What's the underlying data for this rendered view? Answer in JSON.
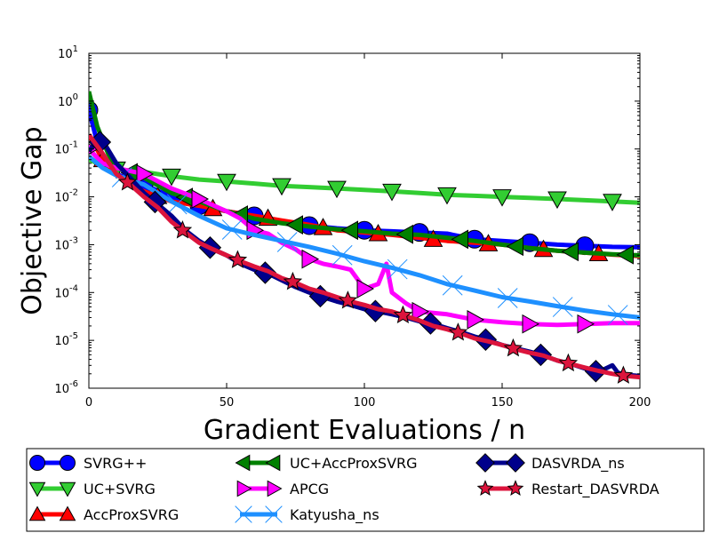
{
  "chart_data": {
    "type": "line",
    "title": "",
    "xlabel": "Gradient Evaluations / n",
    "ylabel": "Objective Gap",
    "xlim": [
      0,
      200
    ],
    "ylim_log10": [
      -6,
      1
    ],
    "yscale": "log",
    "x_ticks": [
      {
        "value": 0,
        "label": "0"
      },
      {
        "value": 50,
        "label": "50"
      },
      {
        "value": 100,
        "label": "100"
      },
      {
        "value": 150,
        "label": "150"
      },
      {
        "value": 200,
        "label": "200"
      }
    ],
    "y_ticks": [
      {
        "exp": 1,
        "base": "10",
        "sup": "1"
      },
      {
        "exp": 0,
        "base": "10",
        "sup": "0"
      },
      {
        "exp": -1,
        "base": "10",
        "sup": "-1"
      },
      {
        "exp": -2,
        "base": "10",
        "sup": "-2"
      },
      {
        "exp": -3,
        "base": "10",
        "sup": "-3"
      },
      {
        "exp": -4,
        "base": "10",
        "sup": "-4"
      },
      {
        "exp": -5,
        "base": "10",
        "sup": "-5"
      },
      {
        "exp": -6,
        "base": "10",
        "sup": "-6"
      }
    ],
    "legend_position": "below",
    "series": [
      {
        "name": "SVRG++",
        "color": "#0000ff",
        "marker": "circle",
        "marker_color": "#0000ff",
        "points": [
          [
            0,
            0.65
          ],
          [
            5,
            0.05
          ],
          [
            10,
            0.03
          ],
          [
            20,
            0.018
          ],
          [
            30,
            0.01
          ],
          [
            40,
            0.0065
          ],
          [
            50,
            0.005
          ],
          [
            60,
            0.004
          ],
          [
            70,
            0.003
          ],
          [
            80,
            0.0025
          ],
          [
            90,
            0.0022
          ],
          [
            100,
            0.002
          ],
          [
            110,
            0.0019
          ],
          [
            120,
            0.0018
          ],
          [
            130,
            0.0017
          ],
          [
            140,
            0.0013
          ],
          [
            150,
            0.0012
          ],
          [
            160,
            0.0011
          ],
          [
            170,
            0.001
          ],
          [
            180,
            0.00095
          ],
          [
            190,
            0.0009
          ],
          [
            200,
            0.00088
          ]
        ],
        "markers_x": [
          0,
          20,
          40,
          60,
          80,
          100,
          120,
          140,
          160,
          180
        ]
      },
      {
        "name": "UC+SVRG",
        "color": "#32cd32",
        "marker": "triangle-down",
        "marker_color": "#32cd32",
        "points": [
          [
            0,
            0.06
          ],
          [
            5,
            0.045
          ],
          [
            10,
            0.038
          ],
          [
            20,
            0.033
          ],
          [
            30,
            0.027
          ],
          [
            40,
            0.023
          ],
          [
            50,
            0.021
          ],
          [
            60,
            0.019
          ],
          [
            70,
            0.017
          ],
          [
            80,
            0.016
          ],
          [
            90,
            0.015
          ],
          [
            100,
            0.014
          ],
          [
            110,
            0.013
          ],
          [
            120,
            0.012
          ],
          [
            130,
            0.011
          ],
          [
            140,
            0.0105
          ],
          [
            150,
            0.01
          ],
          [
            160,
            0.0095
          ],
          [
            170,
            0.009
          ],
          [
            180,
            0.0085
          ],
          [
            190,
            0.008
          ],
          [
            200,
            0.0075
          ]
        ],
        "markers_x": [
          10,
          30,
          50,
          70,
          90,
          110,
          130,
          150,
          170,
          190
        ]
      },
      {
        "name": "AccProxSVRG",
        "color": "#ff0000",
        "marker": "triangle-up",
        "marker_color": "#ff0000",
        "points": [
          [
            0,
            0.2
          ],
          [
            5,
            0.06
          ],
          [
            10,
            0.03
          ],
          [
            15,
            0.018
          ],
          [
            20,
            0.013
          ],
          [
            30,
            0.008
          ],
          [
            40,
            0.0065
          ],
          [
            50,
            0.005
          ],
          [
            60,
            0.004
          ],
          [
            70,
            0.0032
          ],
          [
            80,
            0.0026
          ],
          [
            90,
            0.002
          ],
          [
            100,
            0.0018
          ],
          [
            110,
            0.0016
          ],
          [
            120,
            0.0014
          ],
          [
            130,
            0.0012
          ],
          [
            140,
            0.0011
          ],
          [
            150,
            0.001
          ],
          [
            160,
            0.00085
          ],
          [
            170,
            0.00075
          ],
          [
            180,
            0.00068
          ],
          [
            190,
            0.00062
          ],
          [
            200,
            0.00058
          ]
        ],
        "markers_x": [
          5,
          25,
          45,
          65,
          85,
          105,
          125,
          145,
          165,
          185
        ]
      },
      {
        "name": "UC+AccProxSVRG",
        "color": "#008000",
        "marker": "triangle-left",
        "marker_color": "#008000",
        "points": [
          [
            0,
            1.6
          ],
          [
            3,
            0.3
          ],
          [
            7,
            0.08
          ],
          [
            10,
            0.04
          ],
          [
            15,
            0.032
          ],
          [
            20,
            0.025
          ],
          [
            30,
            0.012
          ],
          [
            40,
            0.008
          ],
          [
            50,
            0.005
          ],
          [
            60,
            0.0035
          ],
          [
            70,
            0.0028
          ],
          [
            80,
            0.0024
          ],
          [
            90,
            0.0021
          ],
          [
            100,
            0.0019
          ],
          [
            110,
            0.0017
          ],
          [
            120,
            0.0016
          ],
          [
            130,
            0.0014
          ],
          [
            140,
            0.0012
          ],
          [
            150,
            0.001
          ],
          [
            160,
            0.00085
          ],
          [
            170,
            0.00075
          ],
          [
            180,
            0.00068
          ],
          [
            190,
            0.00063
          ],
          [
            200,
            0.0006
          ]
        ],
        "markers_x": [
          15,
          35,
          55,
          75,
          95,
          115,
          135,
          155,
          175,
          195
        ]
      },
      {
        "name": "APCG",
        "color": "#ff00ff",
        "marker": "triangle-right",
        "marker_color": "#ff00ff",
        "points": [
          [
            0,
            0.1
          ],
          [
            5,
            0.05
          ],
          [
            10,
            0.04
          ],
          [
            20,
            0.03
          ],
          [
            30,
            0.015
          ],
          [
            40,
            0.009
          ],
          [
            50,
            0.005
          ],
          [
            55,
            0.0035
          ],
          [
            60,
            0.002
          ],
          [
            65,
            0.0017
          ],
          [
            70,
            0.0011
          ],
          [
            75,
            0.0008
          ],
          [
            80,
            0.0005
          ],
          [
            85,
            0.0004
          ],
          [
            90,
            0.00035
          ],
          [
            95,
            0.0003
          ],
          [
            100,
            0.00012
          ],
          [
            105,
            0.00015
          ],
          [
            108,
            0.0004
          ],
          [
            110,
            0.0001
          ],
          [
            115,
            6e-05
          ],
          [
            120,
            4e-05
          ],
          [
            130,
            3.5e-05
          ],
          [
            140,
            2.7e-05
          ],
          [
            150,
            2.4e-05
          ],
          [
            160,
            2.2e-05
          ],
          [
            170,
            2.1e-05
          ],
          [
            180,
            2.2e-05
          ],
          [
            190,
            2.3e-05
          ],
          [
            200,
            2.3e-05
          ]
        ],
        "markers_x": [
          0,
          20,
          40,
          60,
          80,
          100,
          120,
          140,
          160,
          180
        ]
      },
      {
        "name": "Katyusha_ns",
        "color": "#1e90ff",
        "marker": "x",
        "marker_color": "#1e90ff",
        "points": [
          [
            0,
            0.07
          ],
          [
            5,
            0.04
          ],
          [
            10,
            0.028
          ],
          [
            20,
            0.018
          ],
          [
            30,
            0.008
          ],
          [
            40,
            0.004
          ],
          [
            50,
            0.0022
          ],
          [
            60,
            0.0016
          ],
          [
            70,
            0.0012
          ],
          [
            80,
            0.0009
          ],
          [
            90,
            0.00065
          ],
          [
            100,
            0.00045
          ],
          [
            110,
            0.00033
          ],
          [
            120,
            0.00023
          ],
          [
            130,
            0.00015
          ],
          [
            140,
            0.00011
          ],
          [
            150,
            8e-05
          ],
          [
            160,
            6.5e-05
          ],
          [
            170,
            5.2e-05
          ],
          [
            180,
            4.2e-05
          ],
          [
            190,
            3.5e-05
          ],
          [
            200,
            3e-05
          ]
        ],
        "markers_x": [
          12,
          32,
          52,
          72,
          92,
          112,
          132,
          152,
          172,
          192
        ]
      },
      {
        "name": "DASVRDA_ns",
        "color": "#00008b",
        "marker": "diamond",
        "marker_color": "#00008b",
        "points": [
          [
            0,
            0.09
          ],
          [
            3,
            0.15
          ],
          [
            6,
            0.12
          ],
          [
            10,
            0.05
          ],
          [
            15,
            0.025
          ],
          [
            20,
            0.012
          ],
          [
            25,
            0.007
          ],
          [
            30,
            0.004
          ],
          [
            35,
            0.002
          ],
          [
            40,
            0.0012
          ],
          [
            45,
            0.0008
          ],
          [
            50,
            0.0006
          ],
          [
            55,
            0.0004
          ],
          [
            60,
            0.0003
          ],
          [
            65,
            0.00025
          ],
          [
            70,
            0.00018
          ],
          [
            75,
            0.00013
          ],
          [
            80,
            0.0001
          ],
          [
            85,
            8e-05
          ],
          [
            90,
            6.5e-05
          ],
          [
            95,
            5.5e-05
          ],
          [
            100,
            4.5e-05
          ],
          [
            105,
            4e-05
          ],
          [
            110,
            3.5e-05
          ],
          [
            115,
            3e-05
          ],
          [
            120,
            2.5e-05
          ],
          [
            125,
            2.2e-05
          ],
          [
            130,
            1.8e-05
          ],
          [
            135,
            1.5e-05
          ],
          [
            140,
            1.2e-05
          ],
          [
            145,
            1e-05
          ],
          [
            150,
            8e-06
          ],
          [
            155,
            6.8e-06
          ],
          [
            160,
            5.8e-06
          ],
          [
            165,
            4.8e-06
          ],
          [
            170,
            3.8e-06
          ],
          [
            175,
            3.2e-06
          ],
          [
            180,
            2.6e-06
          ],
          [
            185,
            2.2e-06
          ],
          [
            190,
            3e-06
          ],
          [
            192,
            2.1e-06
          ],
          [
            195,
            1.9e-06
          ],
          [
            200,
            1.8e-06
          ]
        ],
        "markers_x": [
          4,
          24,
          44,
          64,
          84,
          104,
          124,
          144,
          164,
          184
        ]
      },
      {
        "name": "Restart_DASVRDA",
        "color": "#dc143c",
        "marker": "star",
        "marker_color": "#dc143c",
        "points": [
          [
            0,
            0.2
          ],
          [
            5,
            0.08
          ],
          [
            10,
            0.03
          ],
          [
            15,
            0.018
          ],
          [
            20,
            0.01
          ],
          [
            25,
            0.006
          ],
          [
            30,
            0.003
          ],
          [
            35,
            0.0018
          ],
          [
            40,
            0.0011
          ],
          [
            45,
            0.0008
          ],
          [
            50,
            0.0006
          ],
          [
            55,
            0.00045
          ],
          [
            60,
            0.00035
          ],
          [
            65,
            0.00028
          ],
          [
            70,
            0.0002
          ],
          [
            75,
            0.00016
          ],
          [
            80,
            0.00012
          ],
          [
            85,
            0.0001
          ],
          [
            90,
            8e-05
          ],
          [
            95,
            6.5e-05
          ],
          [
            100,
            5.5e-05
          ],
          [
            105,
            4.5e-05
          ],
          [
            110,
            4e-05
          ],
          [
            115,
            3.2e-05
          ],
          [
            120,
            2.6e-05
          ],
          [
            125,
            2e-05
          ],
          [
            130,
            1.7e-05
          ],
          [
            135,
            1.4e-05
          ],
          [
            140,
            1.1e-05
          ],
          [
            145,
            9.5e-06
          ],
          [
            150,
            8e-06
          ],
          [
            155,
            6.5e-06
          ],
          [
            160,
            5.5e-06
          ],
          [
            165,
            4.8e-06
          ],
          [
            170,
            3.8e-06
          ],
          [
            175,
            3.2e-06
          ],
          [
            180,
            2.7e-06
          ],
          [
            185,
            2.3e-06
          ],
          [
            190,
            2e-06
          ],
          [
            195,
            1.8e-06
          ],
          [
            200,
            1.7e-06
          ]
        ],
        "markers_x": [
          14,
          34,
          54,
          74,
          94,
          114,
          134,
          154,
          174,
          194
        ]
      }
    ]
  }
}
